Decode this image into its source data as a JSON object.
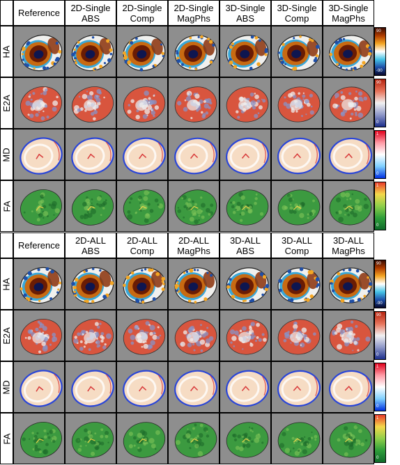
{
  "panels": [
    {
      "headers": [
        "Reference",
        "2D-Single\nABS",
        "2D-Single\nComp",
        "2D-Single\nMagPhs",
        "3D-Single\nABS",
        "3D-Single\nComp",
        "3D-Single\nMagPhs"
      ]
    },
    {
      "headers": [
        "Reference",
        "2D-ALL\nABS",
        "2D-ALL\nComp",
        "2D-ALL\nMagPhs",
        "3D-ALL\nABS",
        "3D-ALL\nComp",
        "3D-ALL\nMagPhs"
      ]
    }
  ],
  "rows": [
    {
      "label": "HA",
      "map": "ha",
      "colorbar": {
        "max": "90",
        "min": "-90",
        "colors": [
          "#3a0a00",
          "#b03c00",
          "#f4a623",
          "#ffffff",
          "#46c3e6",
          "#1f4fa8",
          "#07072a"
        ]
      }
    },
    {
      "label": "E2A",
      "map": "e2a",
      "colorbar": {
        "max": "90",
        "min": "0",
        "colors": [
          "#b4230f",
          "#e8735a",
          "#f1f1f1",
          "#8e97c8",
          "#1c2f8c"
        ]
      }
    },
    {
      "label": "MD",
      "map": "md",
      "colorbar": {
        "max": "1",
        "min": "0",
        "colors": [
          "#e0001b",
          "#ff9aa5",
          "#ffffff",
          "#7fd0ff",
          "#0030e0"
        ]
      }
    },
    {
      "label": "FA",
      "map": "fa",
      "colorbar": {
        "max": "1",
        "min": "0",
        "colors": [
          "#e83a2a",
          "#f4d84a",
          "#8fcf4a",
          "#2e9e3a",
          "#0f6a2a"
        ]
      }
    }
  ],
  "map_colors": {
    "background": "#8e8e8e",
    "ha": {
      "outer": "#f0f0ee",
      "ring": "#c86a12",
      "inner": "#6a1c04",
      "core": "#0e1650"
    },
    "e2a": {
      "base": "#d8553e",
      "mottle": "#8a93c6",
      "light": "#eeeeee"
    },
    "md": {
      "base": "#f6dcc4",
      "edge": "#2a46d8",
      "hot": "#d83a3a"
    },
    "fa": {
      "base": "#3c9a40",
      "light": "#7fc458",
      "dark": "#1d6a2a"
    }
  }
}
